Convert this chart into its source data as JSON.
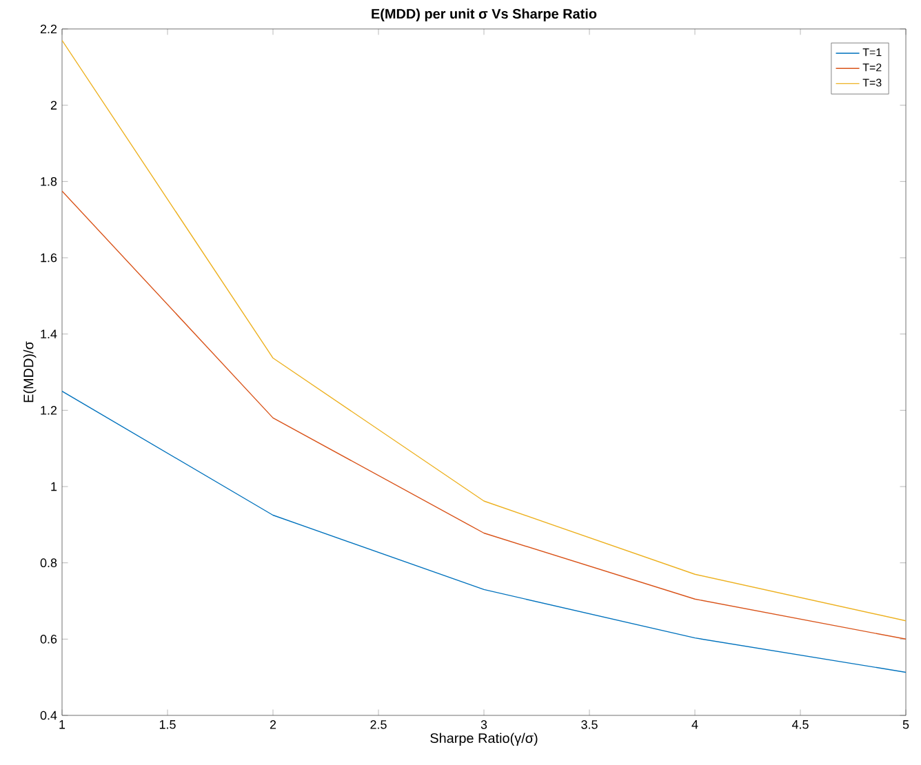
{
  "chart_data": {
    "type": "line",
    "title": "E(MDD) per unit σ Vs Sharpe Ratio",
    "xlabel": "Sharpe Ratio(γ/σ)",
    "ylabel": "E(MDD)/σ",
    "x": [
      1,
      2,
      3,
      4,
      5
    ],
    "series": [
      {
        "name": "T=1",
        "color": "#0072bd",
        "values": [
          1.25,
          0.925,
          0.73,
          0.603,
          0.513
        ]
      },
      {
        "name": "T=2",
        "color": "#d95319",
        "values": [
          1.775,
          1.18,
          0.878,
          0.705,
          0.6
        ]
      },
      {
        "name": "T=3",
        "color": "#edb120",
        "values": [
          2.17,
          1.337,
          0.962,
          0.77,
          0.648
        ]
      }
    ],
    "xlim": [
      1,
      5
    ],
    "xticks": [
      1,
      1.5,
      2,
      2.5,
      3,
      3.5,
      4,
      4.5,
      5
    ],
    "ylim": [
      0.4,
      2.2
    ],
    "yticks": [
      0.4,
      0.6,
      0.8,
      1,
      1.2,
      1.4,
      1.6,
      1.8,
      2,
      2.2
    ],
    "legend": "top right",
    "grid": false,
    "marker": "none",
    "line_style": "solid"
  }
}
